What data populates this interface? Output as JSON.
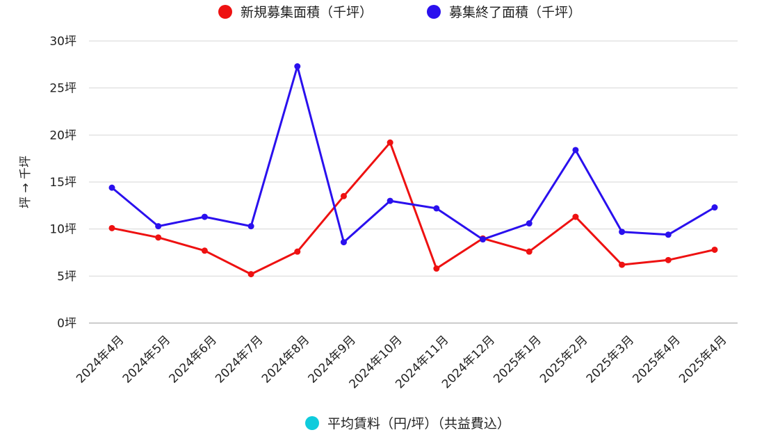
{
  "chart_data": {
    "type": "line",
    "categories": [
      "2024年4月",
      "2024年5月",
      "2024年6月",
      "2024年7月",
      "2024年8月",
      "2024年9月",
      "2024年10月",
      "2024年11月",
      "2024年12月",
      "2025年1月",
      "2025年2月",
      "2025年3月",
      "2025年4月",
      "2025年4月"
    ],
    "series": [
      {
        "name": "新規募集面積（千坪）",
        "color": "#ee1111",
        "values": [
          10.1,
          9.1,
          7.7,
          5.2,
          7.6,
          13.5,
          19.2,
          5.8,
          9.0,
          7.6,
          11.3,
          6.2,
          6.7,
          7.8
        ]
      },
      {
        "name": "募集終了面積（千坪）",
        "color": "#2a10ee",
        "values": [
          14.4,
          10.3,
          11.3,
          10.3,
          27.3,
          8.6,
          13.0,
          12.2,
          8.9,
          10.6,
          18.4,
          9.7,
          9.4,
          12.3
        ]
      }
    ],
    "hidden_series": [
      {
        "name": "平均賃料（円/坪）（共益費込）",
        "color": "#0fcbdc"
      }
    ],
    "ylim": [
      0,
      30
    ],
    "yticks": [
      0,
      5,
      10,
      15,
      20,
      25,
      30
    ],
    "ytick_labels": [
      "0坪",
      "5坪",
      "10坪",
      "15坪",
      "20坪",
      "25坪",
      "30坪"
    ],
    "ylabel": "坪 → 千坪",
    "xlabel": "",
    "title": "",
    "grid": true,
    "legend_top": "top-center",
    "legend_bottom": "bottom-center"
  }
}
